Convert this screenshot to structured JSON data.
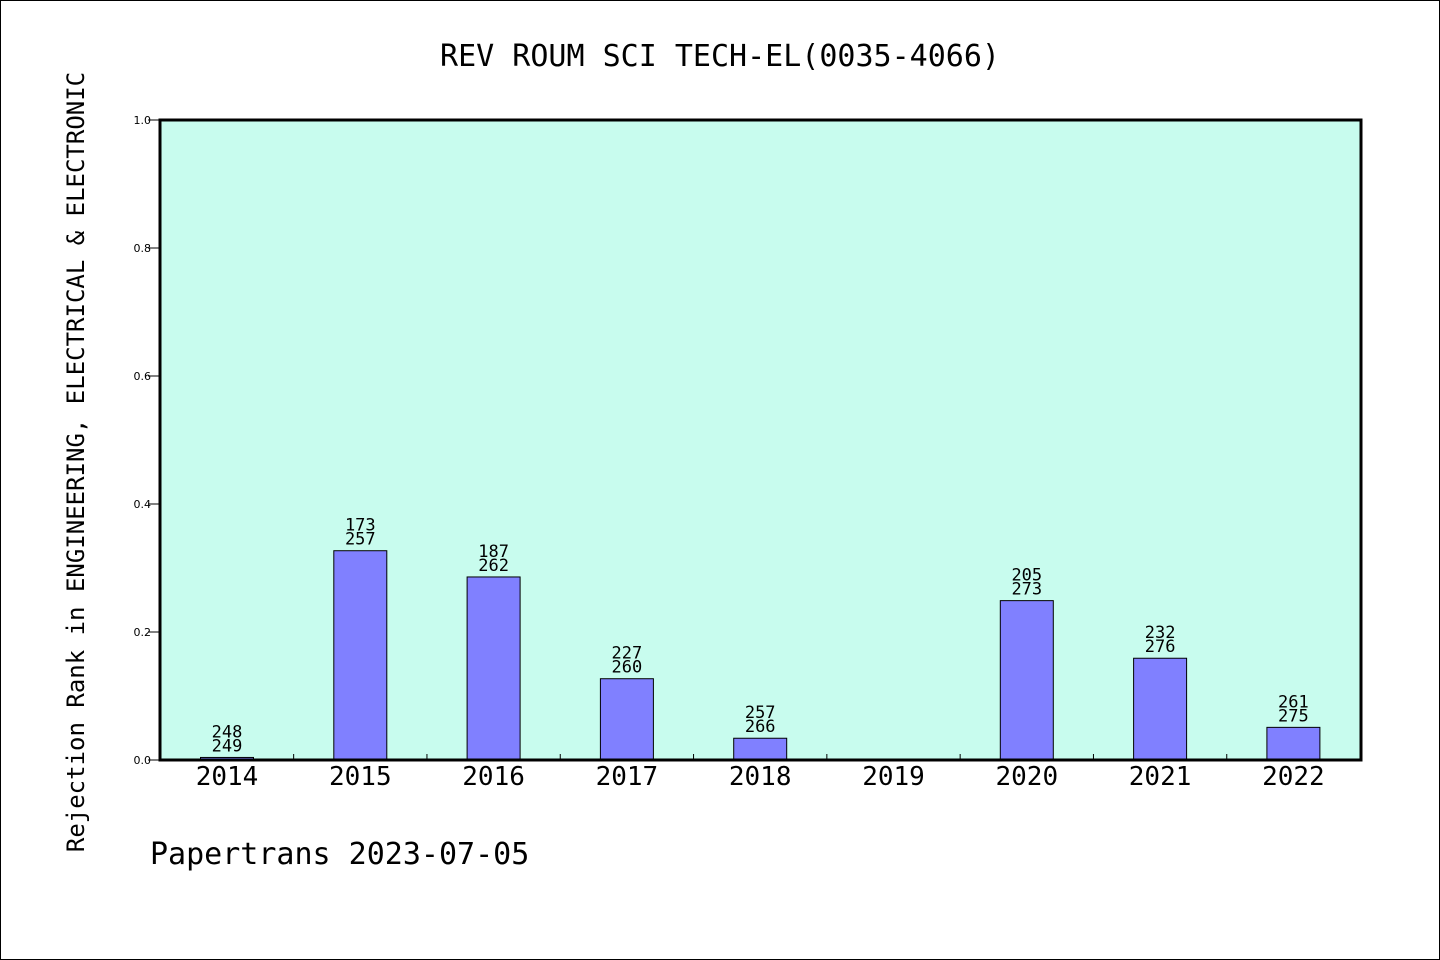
{
  "chart_data": {
    "type": "bar",
    "title": "REV ROUM SCI TECH-EL(0035-4066)",
    "ylabel": "Rejection Rank in ENGINEERING, ELECTRICAL & ELECTRONIC",
    "xlabel": "",
    "ylim": [
      0,
      1.0
    ],
    "yticks": [
      "0.0",
      "0.2",
      "0.4",
      "0.6",
      "0.8",
      "1.0"
    ],
    "categories": [
      "2014",
      "2015",
      "2016",
      "2017",
      "2018",
      "2019",
      "2020",
      "2021",
      "2022"
    ],
    "values": [
      0.004,
      0.327,
      0.286,
      0.127,
      0.034,
      null,
      0.249,
      0.159,
      0.051
    ],
    "bar_labels": [
      [
        "248",
        "249"
      ],
      [
        "173",
        "257"
      ],
      [
        "187",
        "262"
      ],
      [
        "227",
        "260"
      ],
      [
        "257",
        "266"
      ],
      null,
      [
        "205",
        "273"
      ],
      [
        "232",
        "276"
      ],
      [
        "261",
        "275"
      ]
    ],
    "footer": "Papertrans 2023-07-05",
    "colors": {
      "plot_bg": "#c8fcee",
      "bar": "#8080ff",
      "bar_edge": "#000000"
    },
    "grid": false,
    "legend": "none"
  }
}
